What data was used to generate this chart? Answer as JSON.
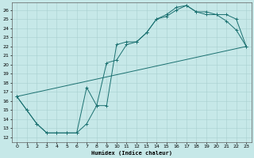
{
  "xlabel": "Humidex (Indice chaleur)",
  "ylabel": "",
  "xlim": [
    -0.5,
    23.5
  ],
  "ylim": [
    11.5,
    26.8
  ],
  "xticks": [
    0,
    1,
    2,
    3,
    4,
    5,
    6,
    7,
    8,
    9,
    10,
    11,
    12,
    13,
    14,
    15,
    16,
    17,
    18,
    19,
    20,
    21,
    22,
    23
  ],
  "yticks": [
    12,
    13,
    14,
    15,
    16,
    17,
    18,
    19,
    20,
    21,
    22,
    23,
    24,
    25,
    26
  ],
  "bg_color": "#c6e8e8",
  "line_color": "#1a7070",
  "grid_color": "#a8d0d0",
  "series1_x": [
    0,
    1,
    2,
    3,
    4,
    5,
    6,
    7,
    8,
    9,
    10,
    11,
    12,
    13,
    14,
    15,
    16,
    17,
    18,
    19,
    20,
    21,
    22,
    23
  ],
  "series1_y": [
    16.5,
    15.0,
    13.5,
    12.5,
    12.5,
    12.5,
    12.5,
    17.5,
    15.5,
    15.5,
    22.2,
    22.5,
    22.5,
    23.5,
    25.0,
    25.3,
    26.0,
    26.5,
    25.8,
    25.5,
    25.5,
    24.8,
    23.8,
    22.0
  ],
  "series2_x": [
    0,
    1,
    2,
    3,
    4,
    5,
    6,
    7,
    8,
    9,
    10,
    11,
    12,
    13,
    14,
    15,
    16,
    17,
    18,
    19,
    20,
    21,
    22,
    23
  ],
  "series2_y": [
    16.5,
    15.0,
    13.5,
    12.5,
    12.5,
    12.5,
    12.5,
    13.5,
    15.5,
    20.2,
    20.5,
    22.2,
    22.5,
    23.5,
    25.0,
    25.5,
    26.3,
    26.5,
    25.8,
    25.8,
    25.5,
    25.5,
    25.0,
    22.0
  ],
  "series3_x": [
    0,
    23
  ],
  "series3_y": [
    16.5,
    22.0
  ]
}
